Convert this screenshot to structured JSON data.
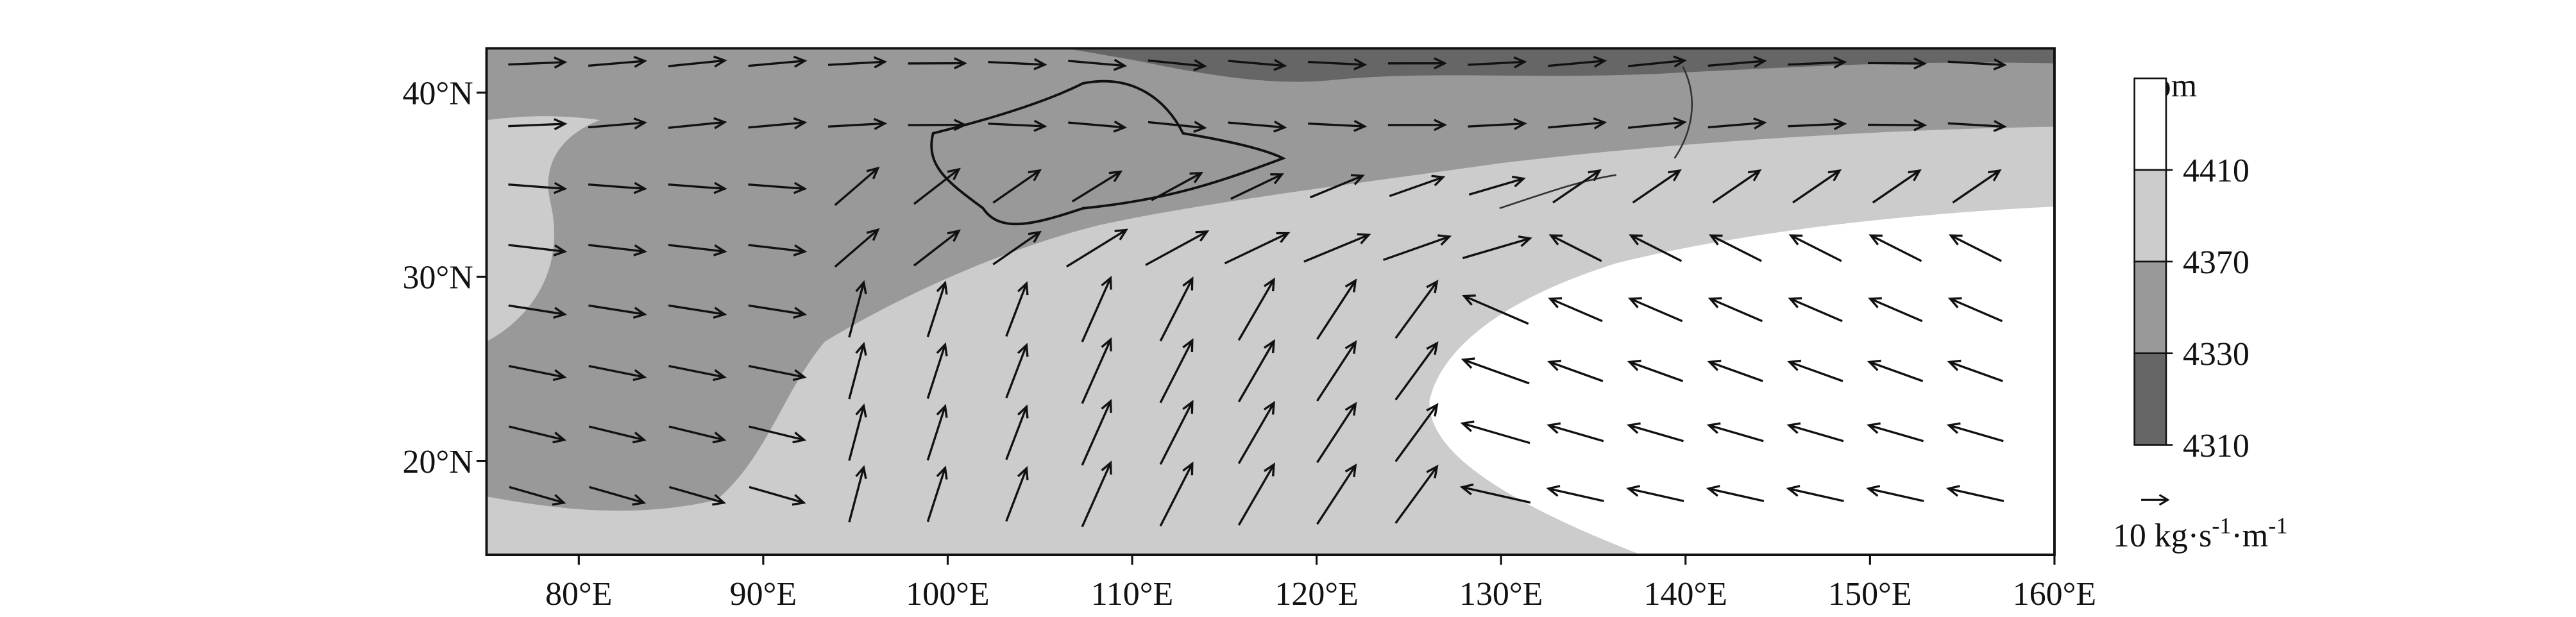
{
  "chart_data": {
    "type": "map",
    "xlim": [
      75,
      160
    ],
    "ylim": [
      14.9,
      42.4
    ],
    "xticks": [
      {
        "value": 80,
        "label": "80°E"
      },
      {
        "value": 90,
        "label": "90°E"
      },
      {
        "value": 100,
        "label": "100°E"
      },
      {
        "value": 110,
        "label": "110°E"
      },
      {
        "value": 120,
        "label": "120°E"
      },
      {
        "value": 130,
        "label": "130°E"
      },
      {
        "value": 140,
        "label": "140°E"
      },
      {
        "value": 150,
        "label": "150°E"
      },
      {
        "value": 160,
        "label": "160°E"
      }
    ],
    "yticks": [
      {
        "value": 20,
        "label": "20°N"
      },
      {
        "value": 30,
        "label": "30°N"
      },
      {
        "value": 40,
        "label": "40°N"
      }
    ],
    "colorbar": {
      "unit": "gpm",
      "levels": [
        4410,
        4370,
        4330,
        4310
      ],
      "colors": [
        "#ffffff",
        "#cccccc",
        "#999999",
        "#666666"
      ]
    },
    "reference_vector": {
      "value": 10,
      "unit_parts": [
        "kg·s",
        "-1",
        "·m",
        "-1"
      ]
    }
  }
}
